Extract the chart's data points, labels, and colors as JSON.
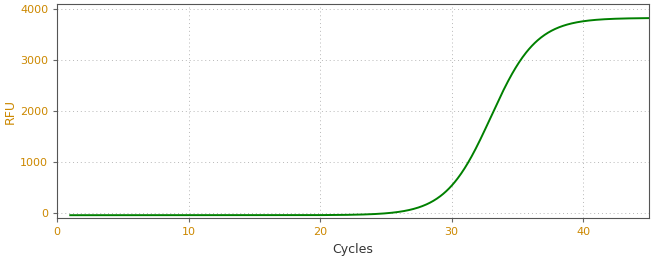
{
  "title": "",
  "xlabel": "Cycles",
  "ylabel": "RFU",
  "xlim": [
    0,
    45
  ],
  "ylim": [
    -100,
    4100
  ],
  "yticks": [
    0,
    1000,
    2000,
    3000,
    4000
  ],
  "xticks": [
    0,
    10,
    20,
    30,
    40
  ],
  "curve_color": "#008000",
  "axis_label_color": "#333333",
  "tick_label_color": "#cc8800",
  "background_color": "#ffffff",
  "grid_color": "#999999",
  "sigmoid_L": 3870,
  "sigmoid_k": 0.58,
  "sigmoid_x0": 33.0,
  "sigmoid_baseline": -40,
  "x_start": 1,
  "x_end": 45,
  "line_width": 1.4,
  "figwidth": 6.53,
  "figheight": 2.6,
  "dpi": 100
}
